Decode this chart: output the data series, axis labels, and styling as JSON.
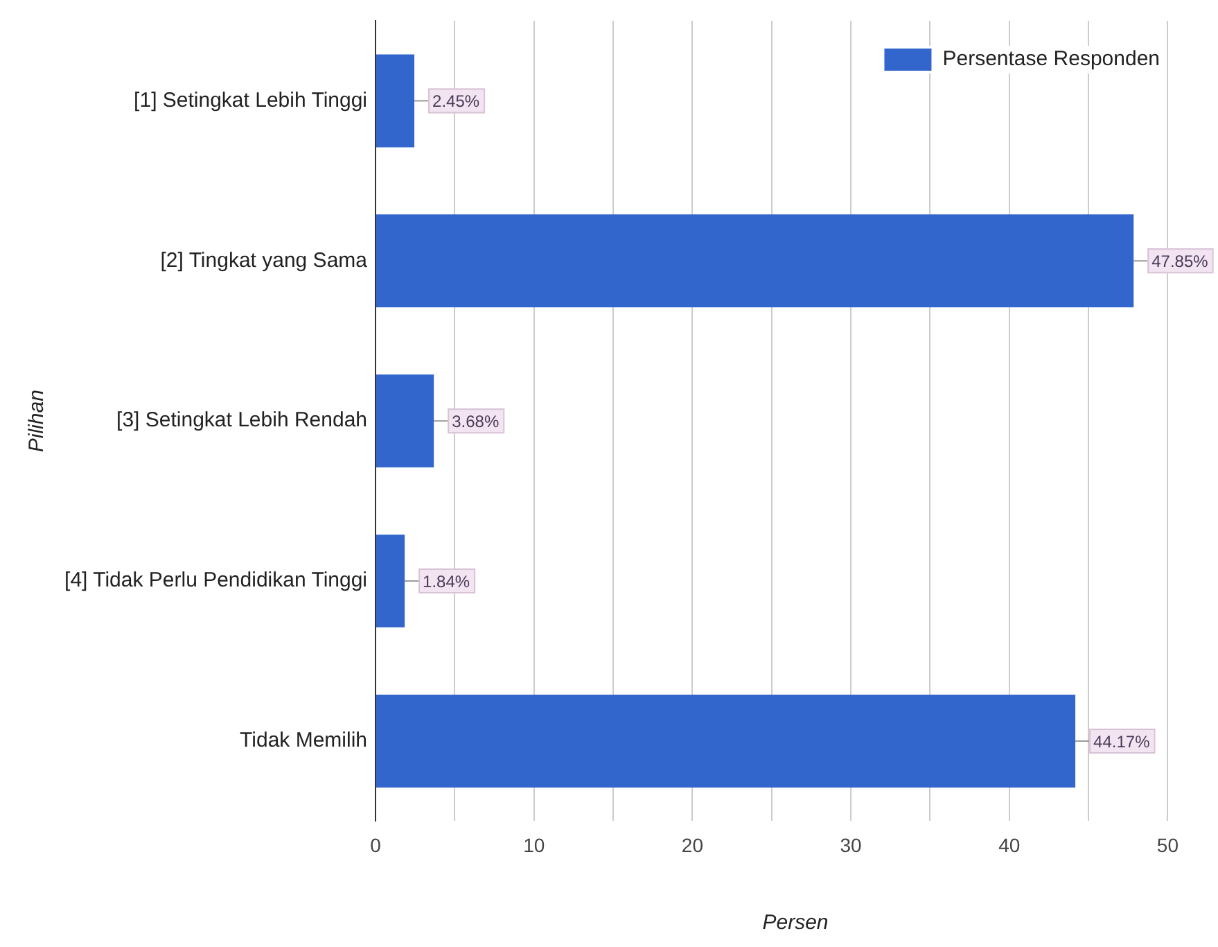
{
  "chart_data": {
    "type": "bar",
    "orientation": "horizontal",
    "xlabel": "Persen",
    "ylabel": "Pilihan",
    "categories": [
      "[1] Setingkat Lebih Tinggi",
      "[2] Tingkat yang Sama",
      "[3] Setingkat Lebih Rendah",
      "[4] Tidak Perlu Pendidikan Tinggi",
      "Tidak Memilih"
    ],
    "series": [
      {
        "name": "Persentase Responden",
        "color": "#3366cc",
        "values": [
          2.45,
          47.85,
          3.68,
          1.84,
          44.17
        ],
        "value_labels": [
          "2.45%",
          "47.85%",
          "3.68%",
          "1.84%",
          "44.17%"
        ]
      }
    ],
    "xlim": [
      0,
      53
    ],
    "xticks": [
      0,
      {
        "value": 5,
        "label": null
      },
      10,
      {
        "value": 15,
        "label": null
      },
      20,
      {
        "value": 25,
        "label": null
      },
      30,
      {
        "value": 35,
        "label": null
      },
      40,
      {
        "value": 45,
        "label": null
      },
      50
    ],
    "grid": "x",
    "legend": "top right"
  }
}
